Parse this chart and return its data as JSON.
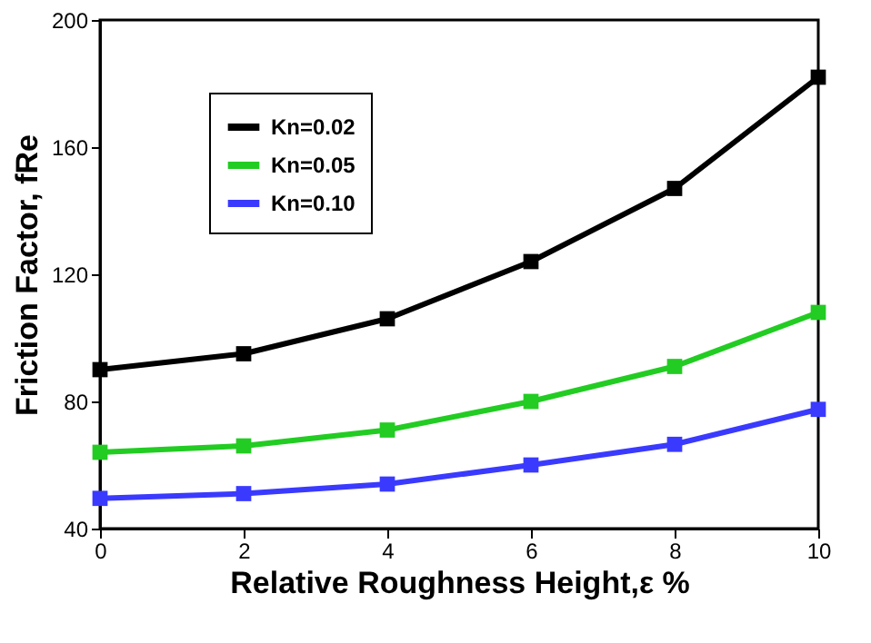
{
  "chart_data": {
    "type": "line",
    "xlabel": "Relative Roughness Height,ε %",
    "ylabel": "Friction Factor, fRe",
    "x": [
      0,
      2,
      4,
      6,
      8,
      10
    ],
    "series": [
      {
        "name": "Kn=0.02",
        "color": "#000000",
        "values": [
          90,
          95,
          106,
          124,
          147,
          182
        ]
      },
      {
        "name": "Kn=0.05",
        "color": "#22cc22",
        "values": [
          64,
          66,
          71,
          80,
          91,
          108
        ]
      },
      {
        "name": "Kn=0.10",
        "color": "#3a3aff",
        "values": [
          49.5,
          51,
          54,
          60,
          66.5,
          77.5
        ]
      }
    ],
    "xlim": [
      0,
      10
    ],
    "xticks": [
      0,
      2,
      4,
      6,
      8,
      10
    ],
    "ylim": [
      40,
      200
    ],
    "yticks": [
      40,
      80,
      120,
      160,
      200
    ],
    "grid": false,
    "legend": "top left",
    "marker": "square",
    "line_style": "solid"
  }
}
